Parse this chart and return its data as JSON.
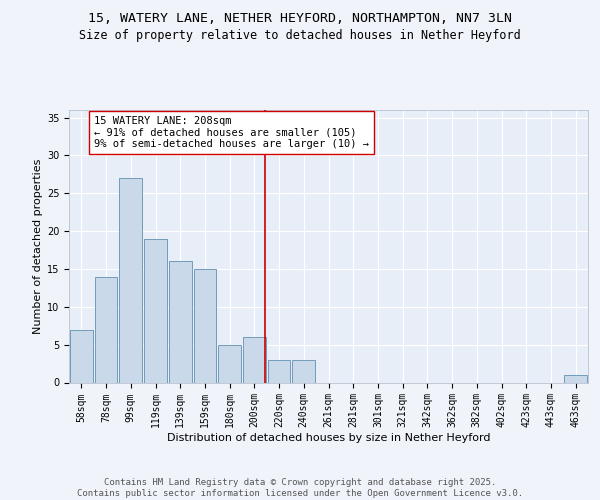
{
  "title_line1": "15, WATERY LANE, NETHER HEYFORD, NORTHAMPTON, NN7 3LN",
  "title_line2": "Size of property relative to detached houses in Nether Heyford",
  "xlabel": "Distribution of detached houses by size in Nether Heyford",
  "ylabel": "Number of detached properties",
  "categories": [
    "58sqm",
    "78sqm",
    "99sqm",
    "119sqm",
    "139sqm",
    "159sqm",
    "180sqm",
    "200sqm",
    "220sqm",
    "240sqm",
    "261sqm",
    "281sqm",
    "301sqm",
    "321sqm",
    "342sqm",
    "362sqm",
    "382sqm",
    "402sqm",
    "423sqm",
    "443sqm",
    "463sqm"
  ],
  "values": [
    7,
    14,
    27,
    19,
    16,
    15,
    5,
    6,
    3,
    3,
    0,
    0,
    0,
    0,
    0,
    0,
    0,
    0,
    0,
    0,
    1
  ],
  "bar_color": "#c9d9ea",
  "bar_edge_color": "#6090b0",
  "vline_x": 7.45,
  "vline_color": "#cc0000",
  "annotation_text": "15 WATERY LANE: 208sqm\n← 91% of detached houses are smaller (105)\n9% of semi-detached houses are larger (10) →",
  "annotation_box_color": "#ffffff",
  "annotation_box_edge": "#cc0000",
  "ylim": [
    0,
    36
  ],
  "yticks": [
    0,
    5,
    10,
    15,
    20,
    25,
    30,
    35
  ],
  "bg_color": "#e8eef8",
  "grid_color": "#ffffff",
  "footer_text": "Contains HM Land Registry data © Crown copyright and database right 2025.\nContains public sector information licensed under the Open Government Licence v3.0.",
  "title_fontsize": 9.5,
  "subtitle_fontsize": 8.5,
  "axis_label_fontsize": 8,
  "tick_fontsize": 7,
  "annotation_fontsize": 7.5,
  "footer_fontsize": 6.5
}
